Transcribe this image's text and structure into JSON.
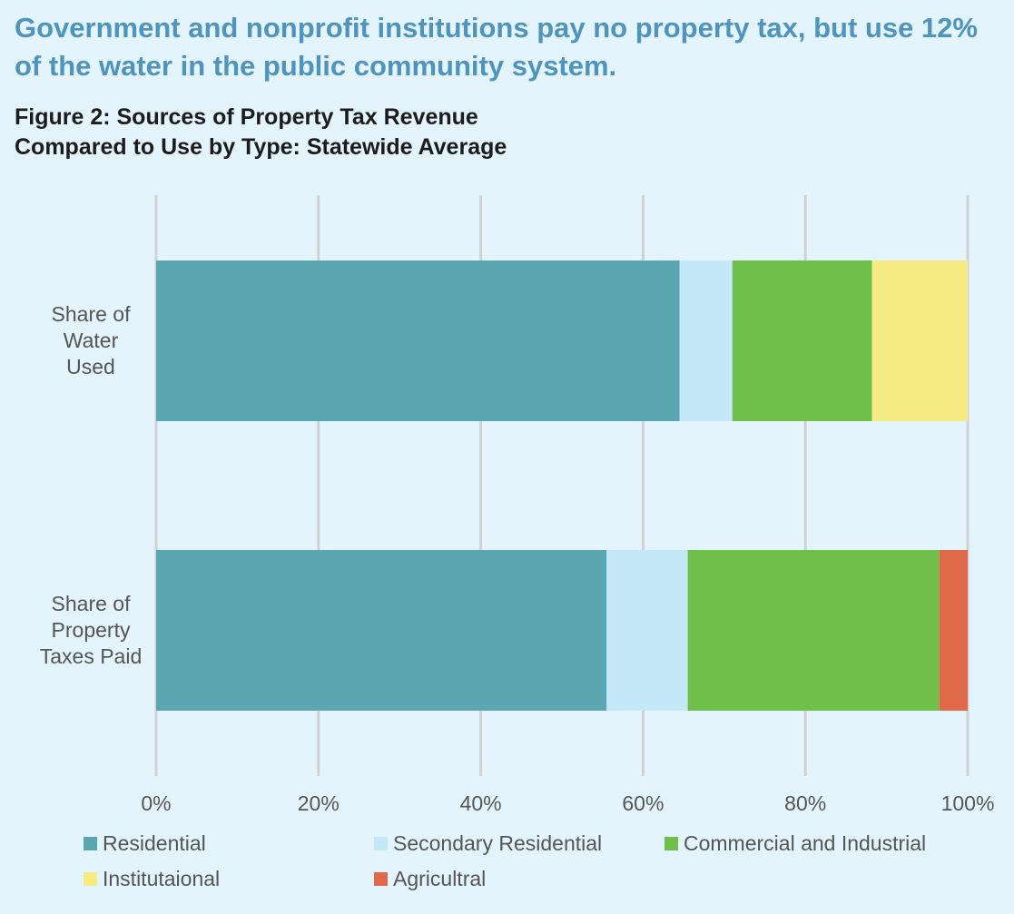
{
  "headline": "Government and nonprofit institutions pay no property tax, but use 12% of the water in the public community system.",
  "figure_title_line1": "Figure 2: Sources of Property Tax Revenue",
  "figure_title_line2": "Compared to Use by Type: Statewide Average",
  "chart_data": {
    "type": "bar",
    "orientation": "horizontal",
    "stacked": true,
    "categories": [
      "Share of Water Used",
      "Share of Property Taxes Paid"
    ],
    "category_labels": [
      [
        "Share of",
        "Water",
        "Used"
      ],
      [
        "Share of",
        "Property",
        "Taxes Paid"
      ]
    ],
    "series": [
      {
        "name": "Residential",
        "color": "#5ba7b1",
        "values": [
          64.5,
          55.5
        ]
      },
      {
        "name": "Secondary Residential",
        "color": "#c5e8f9",
        "values": [
          6.5,
          10
        ]
      },
      {
        "name": "Commercial and Industrial",
        "color": "#6fbf4a",
        "values": [
          17.2,
          31
        ]
      },
      {
        "name": "Institutaional",
        "color": "#f5eb82",
        "values": [
          11.8,
          0
        ]
      },
      {
        "name": "Agricultral",
        "color": "#e0694a",
        "values": [
          0,
          3.5
        ]
      }
    ],
    "xlim": [
      0,
      100
    ],
    "x_ticks": [
      "0%",
      "20%",
      "40%",
      "60%",
      "80%",
      "100%"
    ],
    "grid": true,
    "legend_position": "bottom"
  }
}
